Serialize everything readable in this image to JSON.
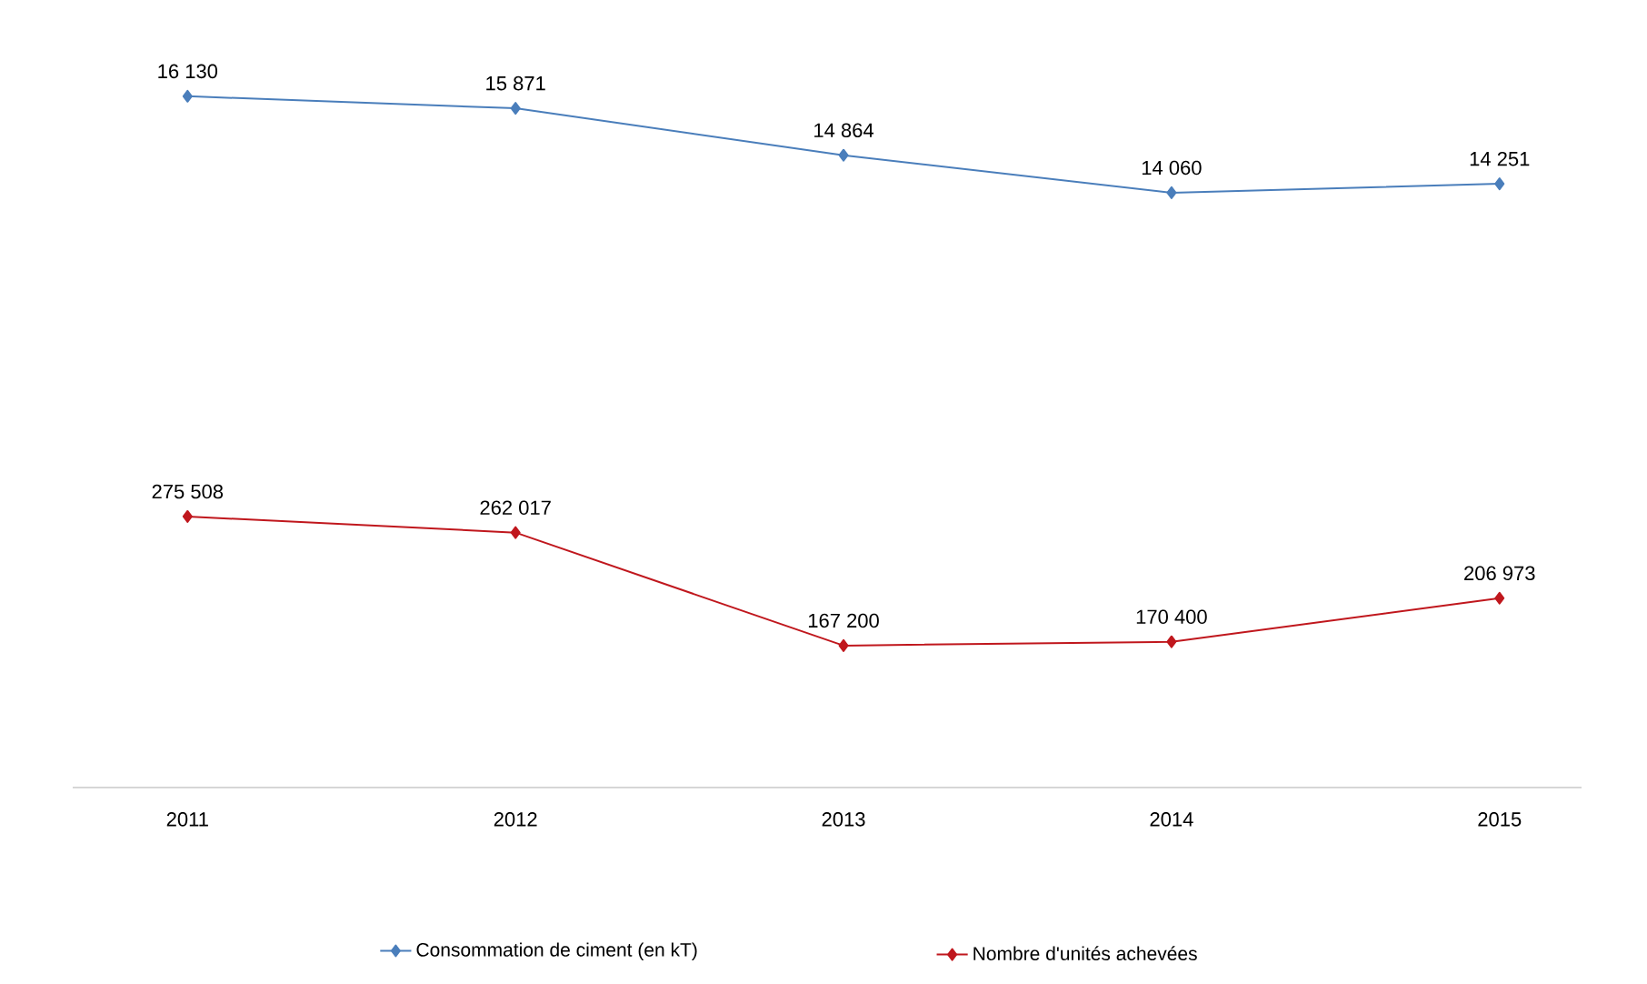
{
  "chart_data": [
    {
      "type": "line",
      "categories": [
        "2011",
        "2012",
        "2013",
        "2014",
        "2015"
      ],
      "series": [
        {
          "name": "Consommation de ciment (en kT)",
          "color": "#4a7ebb",
          "values": [
            16130,
            15871,
            14864,
            14060,
            14251
          ],
          "value_labels": [
            "16 130",
            "15 871",
            "14 864",
            "14 060",
            "14 251"
          ]
        }
      ],
      "tick_labels": false,
      "legend": "bottom",
      "marker": "diamond",
      "line_style": "solid"
    },
    {
      "type": "line",
      "categories": [
        "2011",
        "2012",
        "2013",
        "2014",
        "2015"
      ],
      "series": [
        {
          "name": "Nombre d'unités achevées",
          "color": "#c0171d",
          "values": [
            275508,
            262017,
            167200,
            170400,
            206973
          ],
          "value_labels": [
            "275 508",
            "262 017",
            "167 200",
            "170 400",
            "206 973"
          ]
        }
      ],
      "tick_labels": "x",
      "legend": "bottom",
      "marker": "diamond",
      "line_style": "solid"
    }
  ]
}
